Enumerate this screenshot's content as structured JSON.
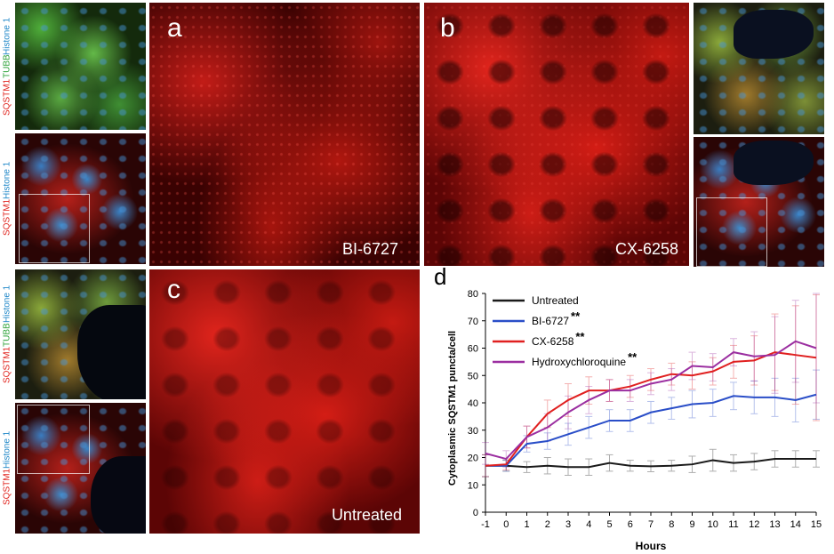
{
  "panels": {
    "a": {
      "letter": "a",
      "caption": "BI-6727"
    },
    "b": {
      "letter": "b",
      "caption": "CX-6258"
    },
    "c": {
      "letter": "c",
      "caption": "Untreated"
    }
  },
  "stain_labels": {
    "triple": [
      {
        "text": "SQSTM1",
        "color": "#e0201a"
      },
      {
        "text": " TUBB",
        "color": "#2fa33a"
      },
      {
        "text": " Histone 1",
        "color": "#1f87c8"
      }
    ],
    "double": [
      {
        "text": "SQSTM1",
        "color": "#e0201a"
      },
      {
        "text": " Histone 1",
        "color": "#1f87c8"
      }
    ]
  },
  "chart_letter": "d",
  "chart_data": {
    "type": "line",
    "title": "",
    "xlabel": "Hours",
    "ylabel": "Cytoplasmic SQSTM1 puncta/cell",
    "x": [
      -1,
      0,
      1,
      2,
      3,
      4,
      5,
      6,
      7,
      8,
      9,
      10,
      11,
      12,
      13,
      14,
      15
    ],
    "xlim": [
      -1,
      15
    ],
    "ylim": [
      0,
      80
    ],
    "yticks": [
      0,
      10,
      20,
      30,
      40,
      50,
      60,
      70,
      80
    ],
    "legend_position": "top-left",
    "series": [
      {
        "name": "Untreated",
        "marker": "",
        "color": "#1a1a1a",
        "values": [
          17,
          17,
          16.5,
          17,
          16.5,
          16.5,
          18,
          17,
          16.8,
          17,
          17.5,
          19,
          18,
          18.5,
          19.5,
          19.5,
          19.5
        ],
        "errors": [
          4,
          2,
          2,
          3,
          3,
          3,
          3,
          2,
          2,
          2,
          3,
          4,
          3,
          3,
          3,
          3,
          3
        ]
      },
      {
        "name": "BI-6727",
        "marker": "**",
        "color": "#2a4ec8",
        "values": [
          17,
          17,
          25,
          26,
          28.5,
          31,
          33.5,
          33.5,
          36.5,
          38,
          39.5,
          40,
          42.5,
          42,
          42,
          41,
          43
        ],
        "errors": [
          4,
          2,
          3,
          3,
          4,
          4,
          4,
          4,
          4,
          4,
          5,
          5,
          5,
          6,
          7,
          8,
          9
        ]
      },
      {
        "name": "CX-6258",
        "marker": "**",
        "color": "#e02020",
        "values": [
          17,
          17.5,
          27.5,
          36,
          41,
          44.5,
          44.5,
          46,
          48.5,
          50.5,
          50,
          51.5,
          55,
          55.5,
          58.5,
          57.5,
          56.5
        ],
        "errors": [
          4,
          2,
          4,
          5,
          6,
          5,
          4,
          4,
          4,
          4,
          5,
          5,
          6,
          9,
          14,
          18,
          23
        ]
      },
      {
        "name": "Hydroxychloroquine",
        "marker": "**",
        "color": "#9b2ea0",
        "values": [
          21.5,
          19.5,
          27.5,
          31,
          36.5,
          41,
          44.5,
          44.5,
          47,
          48.5,
          53.5,
          53,
          58.5,
          57,
          57.5,
          62.5,
          60
        ],
        "errors": [
          4,
          3,
          4,
          5,
          6,
          5,
          4,
          4,
          4,
          4,
          5,
          5,
          5,
          9,
          14,
          15,
          20
        ]
      }
    ]
  }
}
